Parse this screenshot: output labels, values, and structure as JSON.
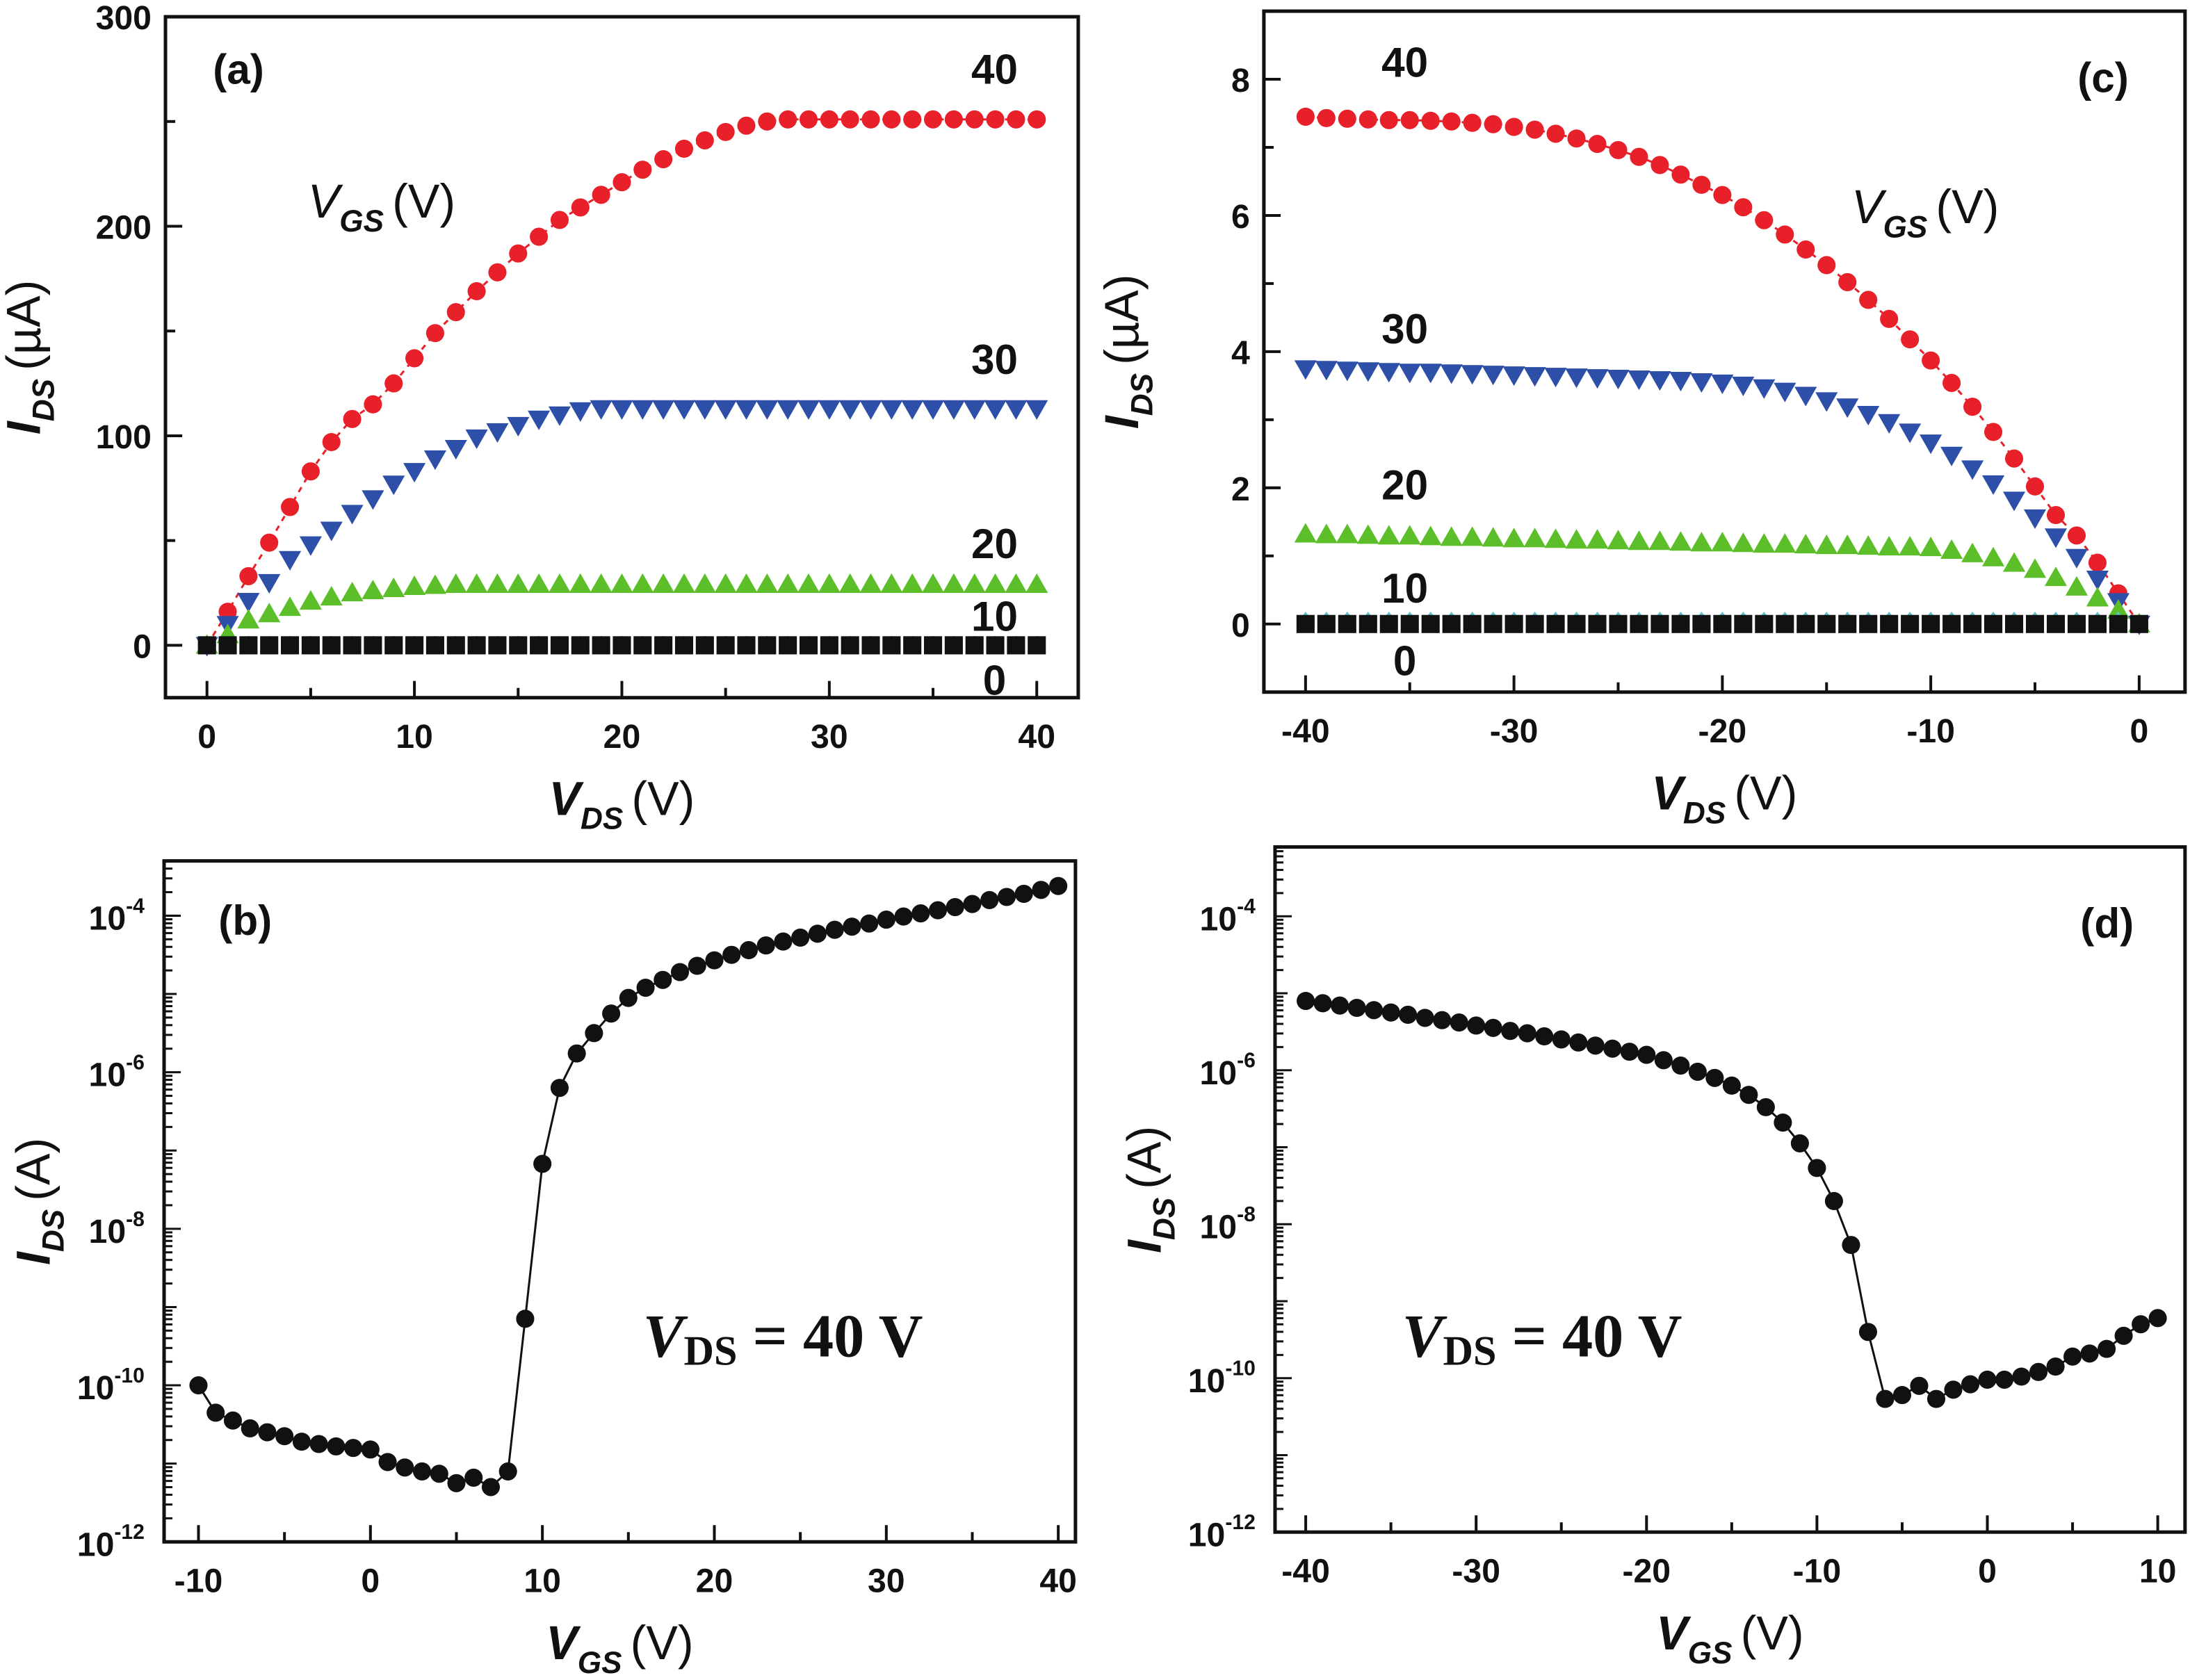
{
  "chart_data": [
    {
      "panel": "(a)",
      "type": "scatter",
      "xlabel": "V_DS (V)",
      "ylabel": "I_DS (µA)",
      "xlim": [
        -2,
        42
      ],
      "ylim": [
        -25,
        300
      ],
      "xticks": [
        "0",
        "10",
        "20",
        "30",
        "40"
      ],
      "yticks": [
        "0",
        "100",
        "200",
        "300"
      ],
      "legend_title": "V_GS (V)",
      "x": {
        "start": 0,
        "end": 40,
        "step": 1
      },
      "series": [
        {
          "name": "40",
          "color": "#e8202a",
          "marker": "circle",
          "values": [
            0,
            16,
            33,
            49,
            66,
            83,
            97,
            108,
            115,
            125,
            137,
            149,
            159,
            169,
            178,
            187,
            195,
            203,
            209,
            215,
            221,
            227,
            232,
            237,
            241,
            245,
            248,
            250,
            251,
            251,
            251,
            251,
            251,
            251,
            251,
            251,
            251,
            251,
            251,
            251,
            251
          ]
        },
        {
          "name": "30",
          "color": "#2e4fa8",
          "marker": "triangle-down",
          "values": [
            0,
            10,
            21,
            30,
            41,
            48,
            55,
            63,
            70,
            77,
            83,
            89,
            94,
            99,
            102,
            105,
            108,
            110,
            112,
            113,
            113,
            113,
            113,
            113,
            113,
            113,
            113,
            113,
            113,
            113,
            113,
            113,
            113,
            113,
            113,
            113,
            113,
            113,
            113,
            113,
            113
          ]
        },
        {
          "name": "20",
          "color": "#5cbf2a",
          "marker": "triangle-up",
          "values": [
            0,
            5,
            12,
            15,
            18,
            21,
            23,
            25,
            26,
            27,
            28,
            28.5,
            29,
            29,
            29,
            29,
            29,
            29,
            29,
            29,
            29,
            29,
            29,
            29,
            29,
            29,
            29,
            29,
            29,
            29,
            29,
            29,
            29,
            29,
            29,
            29,
            29,
            29,
            29,
            29,
            29
          ]
        },
        {
          "name": "10",
          "color": "#5fc4d0",
          "marker": "star",
          "values": [
            0,
            2,
            2,
            2,
            2,
            2,
            2,
            2,
            2,
            2,
            2,
            2,
            2,
            2,
            2,
            2,
            2,
            2,
            2,
            2,
            2,
            2,
            2,
            2,
            2,
            2,
            2,
            2,
            2,
            2,
            2,
            2,
            2,
            2,
            2,
            2,
            2,
            2,
            2,
            2,
            2
          ]
        },
        {
          "name": "0",
          "color": "#111111",
          "marker": "square",
          "values": [
            0,
            0,
            0,
            0,
            0,
            0,
            0,
            0,
            0,
            0,
            0,
            0,
            0,
            0,
            0,
            0,
            0,
            0,
            0,
            0,
            0,
            0,
            0,
            0,
            0,
            0,
            0,
            0,
            0,
            0,
            0,
            0,
            0,
            0,
            0,
            0,
            0,
            0,
            0,
            0,
            0
          ]
        }
      ]
    },
    {
      "panel": "(b)",
      "type": "scatter",
      "scale": "log",
      "xlabel": "V_GS (V)",
      "ylabel": "I_DS (A)",
      "annotation": "V_DS = 40 V",
      "xlim": [
        -12,
        41
      ],
      "ylim_log10": [
        -12,
        -3.3
      ],
      "xticks": [
        "-10",
        "0",
        "10",
        "20",
        "30",
        "40"
      ],
      "yticks_exp": [
        "-12",
        "-10",
        "-8",
        "-6",
        "-4"
      ],
      "x": {
        "start": -10,
        "end": 40,
        "step": 1
      },
      "series": [
        {
          "name": "V_DS = 40 V",
          "color": "#111111",
          "marker": "circle",
          "log10_values": [
            -10.0,
            -10.35,
            -10.45,
            -10.55,
            -10.6,
            -10.65,
            -10.72,
            -10.75,
            -10.78,
            -10.8,
            -10.82,
            -10.98,
            -11.05,
            -11.1,
            -11.13,
            -11.25,
            -11.18,
            -11.3,
            -11.1,
            -9.15,
            -7.17,
            -6.2,
            -5.76,
            -5.5,
            -5.25,
            -5.05,
            -4.92,
            -4.82,
            -4.72,
            -4.64,
            -4.57,
            -4.5,
            -4.44,
            -4.38,
            -4.33,
            -4.28,
            -4.23,
            -4.18,
            -4.14,
            -4.1,
            -4.05,
            -4.01,
            -3.97,
            -3.93,
            -3.89,
            -3.85,
            -3.8,
            -3.76,
            -3.72,
            -3.67,
            -3.62
          ]
        }
      ]
    },
    {
      "panel": "(c)",
      "type": "scatter",
      "xlabel": "V_DS (V)",
      "ylabel": "I_DS (µA)",
      "xlim": [
        -42,
        2.2
      ],
      "ylim": [
        -1,
        9
      ],
      "xticks": [
        "-40",
        "-30",
        "-20",
        "-10",
        "0"
      ],
      "yticks": [
        "0",
        "2",
        "4",
        "6",
        "8"
      ],
      "legend_title": "V_GS (V)",
      "x": {
        "start": -40,
        "end": 0,
        "step": 1
      },
      "series": [
        {
          "name": "40",
          "color": "#e8202a",
          "marker": "circle",
          "values": [
            7.45,
            7.43,
            7.42,
            7.41,
            7.4,
            7.4,
            7.39,
            7.38,
            7.36,
            7.34,
            7.3,
            7.26,
            7.2,
            7.13,
            7.05,
            6.96,
            6.86,
            6.74,
            6.6,
            6.45,
            6.3,
            6.12,
            5.93,
            5.72,
            5.5,
            5.27,
            5.02,
            4.76,
            4.48,
            4.18,
            3.87,
            3.54,
            3.19,
            2.82,
            2.43,
            2.02,
            1.6,
            1.3,
            0.9,
            0.45,
            0
          ]
        },
        {
          "name": "30",
          "color": "#2e4fa8",
          "marker": "triangle-down",
          "values": [
            3.75,
            3.74,
            3.73,
            3.72,
            3.71,
            3.7,
            3.7,
            3.69,
            3.68,
            3.67,
            3.66,
            3.65,
            3.64,
            3.63,
            3.62,
            3.61,
            3.6,
            3.59,
            3.58,
            3.56,
            3.54,
            3.51,
            3.47,
            3.42,
            3.36,
            3.28,
            3.19,
            3.08,
            2.96,
            2.82,
            2.66,
            2.48,
            2.28,
            2.06,
            1.82,
            1.56,
            1.28,
            0.98,
            0.66,
            0.33,
            0
          ]
        },
        {
          "name": "20",
          "color": "#5cbf2a",
          "marker": "triangle-up",
          "values": [
            1.32,
            1.31,
            1.31,
            1.3,
            1.29,
            1.29,
            1.28,
            1.27,
            1.27,
            1.26,
            1.25,
            1.25,
            1.24,
            1.23,
            1.23,
            1.22,
            1.21,
            1.21,
            1.2,
            1.19,
            1.19,
            1.18,
            1.17,
            1.17,
            1.16,
            1.15,
            1.15,
            1.14,
            1.13,
            1.13,
            1.12,
            1.08,
            1.03,
            0.97,
            0.89,
            0.8,
            0.68,
            0.54,
            0.38,
            0.2,
            0
          ]
        },
        {
          "name": "10",
          "color": "#5fc4d0",
          "marker": "star",
          "values": [
            0.1,
            0.1,
            0.1,
            0.1,
            0.1,
            0.1,
            0.1,
            0.1,
            0.1,
            0.1,
            0.1,
            0.1,
            0.1,
            0.1,
            0.1,
            0.1,
            0.1,
            0.1,
            0.1,
            0.1,
            0.1,
            0.1,
            0.1,
            0.1,
            0.1,
            0.1,
            0.1,
            0.1,
            0.1,
            0.1,
            0.1,
            0.1,
            0.1,
            0.1,
            0.1,
            0.1,
            0.1,
            0.1,
            0.1,
            0.1,
            0.05
          ]
        },
        {
          "name": "0",
          "color": "#111111",
          "marker": "square",
          "values": [
            0,
            0,
            0,
            0,
            0,
            0,
            0,
            0,
            0,
            0,
            0,
            0,
            0,
            0,
            0,
            0,
            0,
            0,
            0,
            0,
            0,
            0,
            0,
            0,
            0,
            0,
            0,
            0,
            0,
            0,
            0,
            0,
            0,
            0,
            0,
            0,
            0,
            0,
            0,
            0,
            0
          ]
        }
      ]
    },
    {
      "panel": "(d)",
      "type": "scatter",
      "scale": "log",
      "xlabel": "V_GS (V)",
      "ylabel": "I_DS (A)",
      "annotation": "V_DS = 40 V",
      "xlim": [
        -41.8,
        11.6
      ],
      "ylim_log10": [
        -12,
        -3.1
      ],
      "xticks": [
        "-40",
        "-30",
        "-20",
        "-10",
        "0",
        "10"
      ],
      "yticks_exp": [
        "-12",
        "-10",
        "-8",
        "-6",
        "-4"
      ],
      "x": {
        "start": -40,
        "end": 10,
        "step": 1
      },
      "series": [
        {
          "name": "V_DS = 40 V",
          "color": "#111111",
          "marker": "circle",
          "log10_values": [
            -5.1,
            -5.13,
            -5.16,
            -5.19,
            -5.22,
            -5.25,
            -5.28,
            -5.32,
            -5.35,
            -5.38,
            -5.42,
            -5.45,
            -5.49,
            -5.52,
            -5.56,
            -5.6,
            -5.64,
            -5.68,
            -5.72,
            -5.76,
            -5.8,
            -5.87,
            -5.94,
            -6.02,
            -6.1,
            -6.2,
            -6.32,
            -6.48,
            -6.68,
            -6.95,
            -7.27,
            -7.7,
            -8.27,
            -9.4,
            -10.27,
            -10.22,
            -10.1,
            -10.27,
            -10.15,
            -10.08,
            -10.02,
            -10.02,
            -9.98,
            -9.92,
            -9.85,
            -9.72,
            -9.68,
            -9.62,
            -9.45,
            -9.3,
            -9.22
          ]
        }
      ]
    }
  ]
}
